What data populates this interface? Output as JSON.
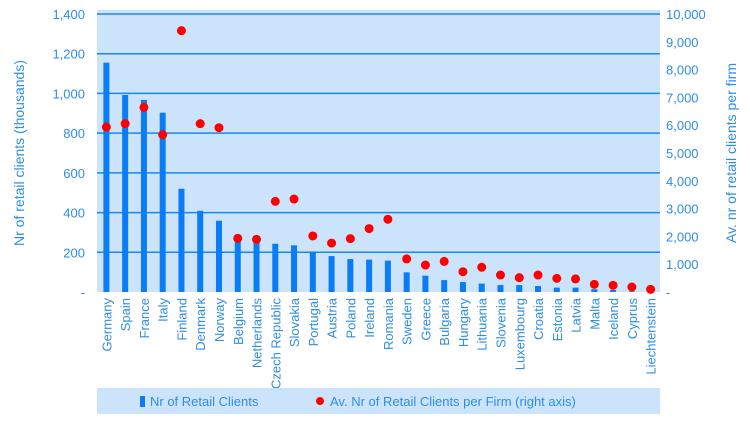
{
  "chart_data": {
    "type": "bar+scatter",
    "categories": [
      "Germany",
      "Spain",
      "France",
      "Italy",
      "Finland",
      "Denmark",
      "Norway",
      "Belgium",
      "Netherlands",
      "Czech Republic",
      "Slovakia",
      "Portugal",
      "Austria",
      "Poland",
      "Ireland",
      "Romania",
      "Sweden",
      "Greece",
      "Bulgaria",
      "Hungary",
      "Lithuania",
      "Slovenia",
      "Luxembourg",
      "Croatia",
      "Estonia",
      "Latvia",
      "Malta",
      "Iceland",
      "Cyprus",
      "Liechtenstein"
    ],
    "series": [
      {
        "name": "Nr of Retail Clients",
        "type": "bar",
        "axis": "left",
        "color": "#0a7cf5",
        "values": [
          1155,
          992,
          967,
          903,
          520,
          409,
          359,
          262,
          253,
          243,
          235,
          203,
          181,
          166,
          163,
          158,
          99,
          82,
          60,
          50,
          42,
          35,
          35,
          30,
          22,
          22,
          14,
          10,
          3,
          1
        ]
      },
      {
        "name": "Av. Nr of Retail Clients per Firm (right axis)",
        "type": "scatter",
        "axis": "right",
        "color": "#ff0000",
        "values": [
          5935,
          6055,
          6640,
          5660,
          9400,
          6055,
          5910,
          1930,
          1895,
          3260,
          3345,
          2015,
          1760,
          1920,
          2280,
          2615,
          1190,
          970,
          1100,
          730,
          890,
          610,
          515,
          610,
          490,
          470,
          275,
          240,
          180,
          95
        ]
      }
    ],
    "ylabel": "Nr of retail clients (thousands)",
    "y2label": "Av. nr of retail clients per firm",
    "ylim": [
      0,
      1400
    ],
    "y2lim": [
      0,
      10000
    ],
    "yticks": [
      "-",
      "200",
      "400",
      "600",
      "800",
      "1,000",
      "1,200",
      "1,400"
    ],
    "y2ticks": [
      "-",
      "1,000",
      "2,000",
      "3,000",
      "4,000",
      "5,000",
      "6,000",
      "7,000",
      "8,000",
      "9,000",
      "10,000"
    ],
    "grid": true,
    "legend": "bottom",
    "background": "#cce4fb"
  }
}
